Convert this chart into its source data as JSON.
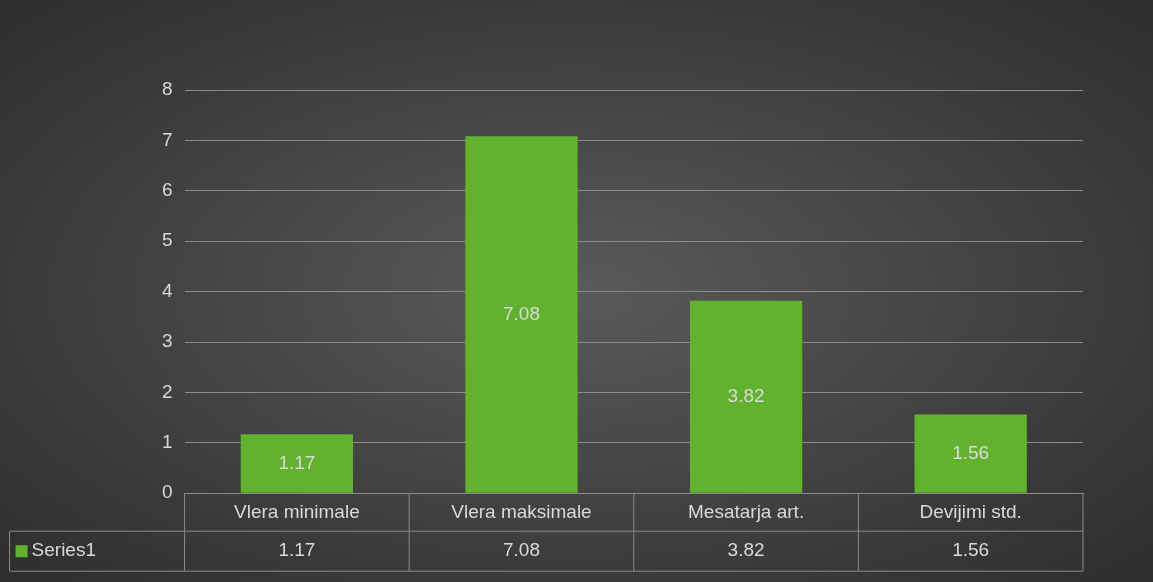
{
  "chart_data": {
    "type": "bar",
    "categories": [
      "Vlera minimale",
      "Vlera maksimale",
      "Mesatarja art.",
      "Devijimi std."
    ],
    "series": [
      {
        "name": "Series1",
        "color": "#62b22f",
        "values": [
          1.17,
          7.08,
          3.82,
          1.56
        ],
        "value_labels": [
          "1.17",
          "7.08",
          "3.82",
          "1.56"
        ]
      }
    ],
    "annotations": [
      "1.17",
      "7.08",
      "3.82",
      "1.56"
    ],
    "ylim": [
      0,
      8
    ],
    "yticks": [
      0,
      1,
      2,
      3,
      4,
      5,
      6,
      7,
      8
    ],
    "grid": "y",
    "data_labels": true,
    "legend": "bottom"
  }
}
